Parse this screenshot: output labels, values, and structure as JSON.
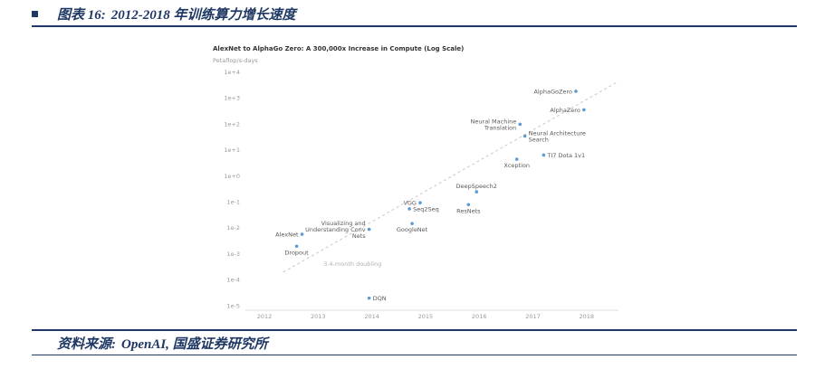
{
  "header": {
    "chart_label": "图表 16:",
    "title": "2012-2018 年训练算力增长速度"
  },
  "footer": {
    "source_label": "资料来源:",
    "source_text": "OpenAI, 国盛证券研究所"
  },
  "colors": {
    "navy": "#1f3864",
    "point": "#5b9bd5",
    "trend": "#c8c8c8",
    "axis": "#dddddd",
    "tick_text": "#9a9a9a",
    "label_text": "#595959"
  },
  "chart_data": {
    "type": "scatter",
    "title": "AlexNet to AlphaGo Zero: A 300,000x Increase in Compute (Log Scale)",
    "ylabel": "Petaflop/s-days",
    "xlabel": "",
    "y_scale": "log",
    "ylim": [
      1e-05,
      10000
    ],
    "y_ticks": [
      "1e+4",
      "1e+3",
      "1e+2",
      "1e+1",
      "1e+0",
      "1e-1",
      "1e-2",
      "1e-3",
      "1e-4",
      "1e-5"
    ],
    "x_ticks": [
      2012,
      2013,
      2014,
      2015,
      2016,
      2017,
      2018
    ],
    "grid": "off",
    "legend": "none",
    "trend": {
      "label": "3.4-month doubling",
      "x1": 2012.35,
      "v1": 0.0002,
      "x2": 2018.55,
      "v2": 4000,
      "label_x": 2013.1,
      "label_v": 0.00035
    },
    "points": [
      {
        "label": "AlexNet",
        "year": 2012.7,
        "value": 0.0058,
        "label_pos": "left"
      },
      {
        "label": "Dropout",
        "year": 2012.6,
        "value": 0.002,
        "label_pos": "below"
      },
      {
        "label": "Visualizing and\nUnderstanding Conv\nNets",
        "year": 2013.95,
        "value": 0.009,
        "label_pos": "left"
      },
      {
        "label": "DQN",
        "year": 2013.95,
        "value": 2e-05,
        "label_pos": "right"
      },
      {
        "label": "GoogleNet",
        "year": 2014.75,
        "value": 0.015,
        "label_pos": "below"
      },
      {
        "label": "VGG",
        "year": 2014.9,
        "value": 0.095,
        "label_pos": "left"
      },
      {
        "label": "Seq2Seq",
        "year": 2014.7,
        "value": 0.055,
        "label_pos": "right"
      },
      {
        "label": "ResNets",
        "year": 2015.8,
        "value": 0.08,
        "label_pos": "below"
      },
      {
        "label": "DeepSpeech2",
        "year": 2015.95,
        "value": 0.25,
        "label_pos": "above"
      },
      {
        "label": "Xception",
        "year": 2016.7,
        "value": 4.5,
        "label_pos": "below"
      },
      {
        "label": "TI7 Dota 1v1",
        "year": 2017.2,
        "value": 6.5,
        "label_pos": "right"
      },
      {
        "label": "Neural Machine\nTranslation",
        "year": 2016.76,
        "value": 100,
        "label_pos": "left"
      },
      {
        "label": "Neural Architecture\nSearch",
        "year": 2016.85,
        "value": 35,
        "label_pos": "right"
      },
      {
        "label": "AlphaZero",
        "year": 2017.95,
        "value": 360,
        "label_pos": "left"
      },
      {
        "label": "AlphaGoZero",
        "year": 2017.8,
        "value": 1860,
        "label_pos": "left"
      }
    ]
  }
}
